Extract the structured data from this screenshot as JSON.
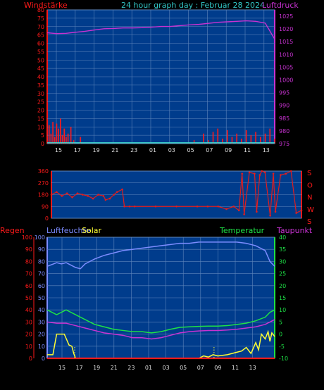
{
  "header": {
    "left_label": "Windstärke",
    "title": "24 hour graph day : Februar 28 2024",
    "right_label": "Luftdruck"
  },
  "colors": {
    "background": "#000000",
    "plot_bg": "#003c8c",
    "grid": "#5f86bc",
    "wind": "#ff1a1a",
    "gust": "#40e0d0",
    "pressure": "#c832d2",
    "direction": "#e11e1e",
    "humidity": "#7c8cff",
    "solar": "#ffff33",
    "temperature": "#1ee146",
    "dewpoint": "#c832d2",
    "rain": "#ff1a1a",
    "title": "#32c8c8"
  },
  "x_ticks": [
    "15",
    "17",
    "19",
    "21",
    "23",
    "01",
    "03",
    "05",
    "07",
    "09",
    "11",
    "13"
  ],
  "chart_data": [
    {
      "type": "line",
      "panel": "wind-pressure",
      "x_ticks": [
        "15",
        "17",
        "19",
        "21",
        "23",
        "01",
        "03",
        "05",
        "07",
        "09",
        "11",
        "13"
      ],
      "y_left": {
        "label": "Windstärke",
        "ticks": [
          0,
          5,
          10,
          15,
          20,
          25,
          30,
          35,
          40,
          45,
          50,
          55,
          60,
          65,
          70,
          75,
          80
        ],
        "ylim": [
          0,
          80
        ]
      },
      "y_right": {
        "label": "Luftdruck",
        "ticks": [
          975,
          980,
          985,
          990,
          995,
          1000,
          1005,
          1010,
          1015,
          1020,
          1025
        ],
        "ylim": [
          975,
          1027.5
        ]
      },
      "series": [
        {
          "key": "pressure",
          "axis": "right",
          "x": [
            0,
            1,
            2,
            3,
            4,
            5,
            6,
            7,
            8,
            9,
            10,
            11,
            12,
            13,
            14,
            15,
            16,
            17,
            18,
            19,
            20,
            21,
            22,
            23,
            24
          ],
          "values": [
            1018.5,
            1018.2,
            1018.3,
            1018.7,
            1019.1,
            1019.6,
            1020.1,
            1020.2,
            1020.4,
            1020.4,
            1020.5,
            1020.7,
            1021.0,
            1021.0,
            1021.3,
            1021.6,
            1021.8,
            1022.2,
            1022.6,
            1022.8,
            1023.0,
            1023.2,
            1023.0,
            1022.3,
            1016.0
          ]
        },
        {
          "key": "wind",
          "axis": "left",
          "x": [
            0,
            0.2,
            0.4,
            0.6,
            0.8,
            1.0,
            1.2,
            1.4,
            1.6,
            1.8,
            2.0,
            2.2,
            2.5,
            2.8,
            3.5,
            4.5,
            6,
            8,
            10,
            12,
            14.5,
            15.5,
            16.5,
            17.0,
            17.5,
            18.0,
            18.5,
            19.0,
            19.5,
            20.0,
            20.5,
            21.0,
            21.5,
            22.0,
            22.5,
            23.0,
            23.5,
            24
          ],
          "values": [
            3,
            11,
            6,
            13,
            4,
            12,
            9,
            15,
            5,
            9,
            4,
            6,
            10,
            2,
            4,
            0,
            0,
            0,
            0,
            0,
            0,
            2,
            6,
            2,
            7,
            9,
            3,
            8,
            4,
            6,
            3,
            8,
            5,
            7,
            4,
            6,
            9,
            3
          ]
        },
        {
          "key": "gust",
          "axis": "left",
          "x": [
            0,
            6,
            12,
            18,
            24
          ],
          "values": [
            0.5,
            0.5,
            0.5,
            0.5,
            0.5
          ]
        }
      ]
    },
    {
      "type": "scatter",
      "panel": "wind-direction",
      "x_ticks": [
        "15",
        "17",
        "19",
        "21",
        "23",
        "01",
        "03",
        "05",
        "07",
        "09",
        "11",
        "13"
      ],
      "y_left": {
        "ticks": [
          0,
          90,
          180,
          270,
          360
        ],
        "ylim": [
          0,
          360
        ]
      },
      "y_right": {
        "ticks": [
          "S",
          "O",
          "N",
          "W",
          "S"
        ]
      },
      "series": [
        {
          "key": "direction",
          "x": [
            0,
            0.5,
            1,
            1.5,
            2,
            2.5,
            3,
            3.5,
            4,
            4.5,
            5,
            5.2,
            5.6,
            6.0,
            6.3,
            6.8,
            7.0,
            7.5,
            8,
            10,
            12,
            14,
            15,
            16,
            16.8,
            17.5,
            18.0,
            18.3,
            18.5,
            19.0,
            19.5,
            19.7,
            20.0,
            20.2,
            20.5,
            21.0,
            21.3,
            21.5,
            22.0,
            22.5,
            23.0,
            23.5,
            24
          ],
          "values": [
            180,
            200,
            170,
            190,
            160,
            190,
            180,
            170,
            150,
            180,
            170,
            140,
            150,
            180,
            200,
            220,
            90,
            90,
            90,
            90,
            90,
            90,
            90,
            90,
            70,
            90,
            60,
            340,
            30,
            350,
            340,
            50,
            330,
            360,
            350,
            20,
            340,
            50,
            330,
            340,
            360,
            40,
            60
          ]
        }
      ]
    },
    {
      "type": "line",
      "panel": "humidity-temperature",
      "x_ticks": [
        "15",
        "17",
        "19",
        "21",
        "23",
        "01",
        "03",
        "05",
        "07",
        "09",
        "11",
        "13"
      ],
      "y_left": {
        "label": "Regen",
        "ticks": [
          0,
          10,
          20,
          30,
          40,
          50,
          60,
          70,
          80,
          90,
          100
        ],
        "ylim": [
          0,
          100
        ]
      },
      "y_left_inner": {
        "label": "Luftfeuchte",
        "ticks": [
          0,
          10,
          20,
          30,
          40,
          50,
          60,
          70,
          80,
          90,
          100
        ],
        "ylim": [
          0,
          100
        ]
      },
      "y_right": {
        "label": "Temperatur",
        "ticks": [
          -10,
          -5,
          0,
          5,
          10,
          15,
          20,
          25,
          30,
          35,
          40
        ],
        "ylim": [
          -10,
          40
        ]
      },
      "extra_labels": [
        "Solar",
        "Taupunkt"
      ],
      "series": [
        {
          "key": "humidity",
          "axis": "left",
          "x": [
            0,
            1,
            1.5,
            2,
            2.5,
            3,
            3.5,
            4,
            5,
            6,
            7,
            8,
            9,
            10,
            11,
            12,
            13,
            14,
            15,
            16,
            17,
            18,
            19,
            20,
            21,
            22,
            23,
            23.5,
            24
          ],
          "values": [
            76,
            79,
            78,
            79,
            77,
            75,
            74,
            78,
            82,
            85,
            87,
            89,
            90,
            91,
            92,
            93,
            94,
            95,
            95,
            96,
            96,
            96,
            96,
            96,
            95,
            93,
            89,
            80,
            76
          ]
        },
        {
          "key": "temperature",
          "axis": "right",
          "x": [
            0,
            1,
            2,
            3,
            4,
            5,
            6,
            7,
            8,
            9,
            10,
            11,
            12,
            13,
            14,
            15,
            16,
            17,
            18,
            19,
            20,
            21,
            22,
            23,
            23.5,
            24
          ],
          "values": [
            10,
            8,
            10,
            8,
            6,
            4,
            3,
            2,
            1.5,
            1,
            1,
            0.5,
            1,
            2,
            2.8,
            3,
            3.2,
            3.3,
            3.3,
            3.5,
            4,
            4.5,
            5.5,
            7,
            9,
            10
          ]
        },
        {
          "key": "dewpoint",
          "axis": "right",
          "x": [
            0,
            1,
            2,
            3,
            4,
            5,
            6,
            7,
            8,
            9,
            10,
            11,
            12,
            13,
            14,
            15,
            16,
            17,
            18,
            19,
            20,
            21,
            22,
            23,
            23.5,
            24
          ],
          "values": [
            5,
            4.5,
            4.5,
            3.5,
            2.5,
            1.5,
            0.5,
            0,
            -0.5,
            -1.5,
            -1.5,
            -2,
            -1.5,
            -0.5,
            0.5,
            1,
            1.3,
            1.5,
            1.5,
            1.7,
            2,
            2.5,
            3,
            4,
            5,
            6
          ]
        },
        {
          "key": "solar",
          "axis": "left",
          "x": [
            0,
            0.6,
            1,
            1.3,
            1.8,
            2.3,
            2.6,
            2.8,
            3,
            4,
            6,
            8,
            10,
            12,
            14,
            16,
            16.5,
            17,
            17.5,
            18,
            19,
            20,
            20.5,
            21,
            21.5,
            22,
            22.3,
            22.6,
            23,
            23.3,
            23.5,
            23.7,
            24
          ],
          "values": [
            3,
            3,
            20,
            20,
            20,
            11,
            10,
            4,
            0,
            0,
            0,
            0,
            0,
            0,
            0,
            0,
            2,
            1,
            3,
            2,
            3,
            5,
            6,
            9,
            4,
            13,
            7,
            20,
            16,
            22,
            14,
            21,
            18
          ]
        },
        {
          "key": "rain",
          "axis": "left",
          "x": [
            0,
            24
          ],
          "values": [
            0,
            0
          ]
        }
      ]
    }
  ]
}
